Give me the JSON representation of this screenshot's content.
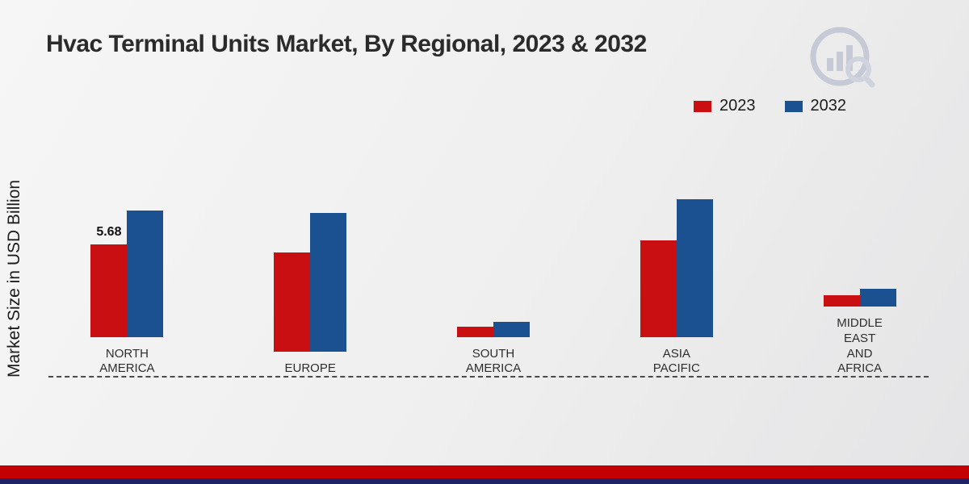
{
  "chart_data": {
    "type": "bar",
    "title": "Hvac Terminal Units Market, By Regional, 2023 & 2032",
    "ylabel": "Market Size in USD Billion",
    "xlabel": "",
    "categories": [
      "NORTH\nAMERICA",
      "EUROPE",
      "SOUTH\nAMERICA",
      "ASIA\nPACIFIC",
      "MIDDLE\nEAST\nAND\nAFRICA"
    ],
    "series": [
      {
        "name": "2023",
        "color": "#c90f12",
        "values": [
          5.68,
          6.05,
          0.65,
          5.95,
          0.7
        ],
        "value_labels": [
          "5.68",
          "",
          "",
          "",
          ""
        ]
      },
      {
        "name": "2032",
        "color": "#1b5191",
        "values": [
          7.75,
          8.5,
          0.95,
          8.45,
          1.1
        ],
        "value_labels": [
          "",
          "",
          "",
          "",
          ""
        ]
      }
    ],
    "ylim": [
      0,
      14
    ],
    "grid": false,
    "baseline_style": "dashed",
    "legend_position": "top-right"
  },
  "branding": {
    "footer_red_color": "#c40000",
    "footer_navy_color": "#1d2365",
    "logo_color": "#c5cad6"
  }
}
